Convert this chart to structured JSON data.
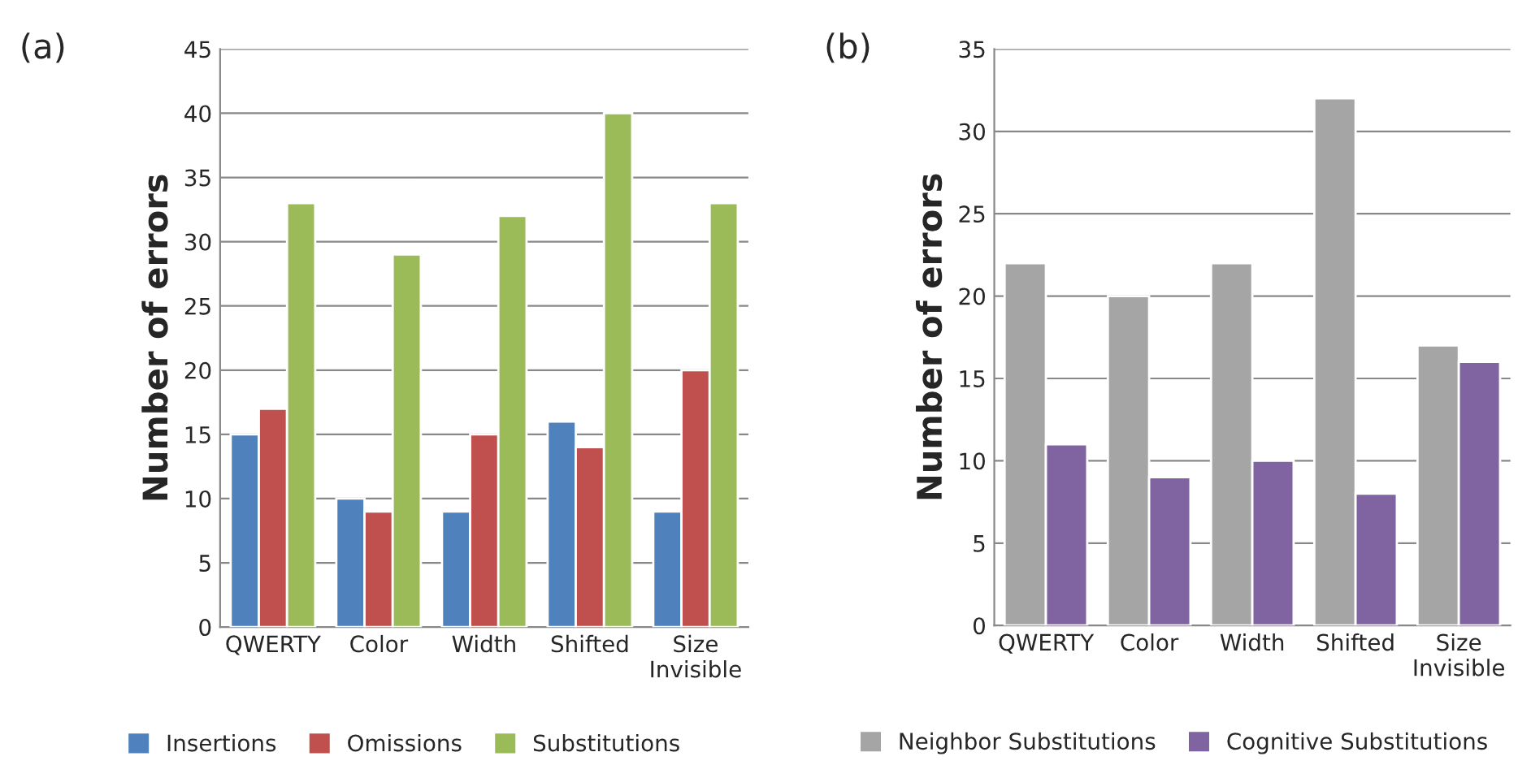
{
  "chart_data": [
    {
      "type": "bar",
      "title": "(a)",
      "ylabel": "Number of errors",
      "categories": [
        "QWERTY",
        "Color",
        "Width",
        "Shifted",
        "Size\nInvisible"
      ],
      "series": [
        {
          "name": "Insertions",
          "color": "#4f81bd",
          "values": [
            15,
            10,
            9,
            16,
            9
          ]
        },
        {
          "name": "Omissions",
          "color": "#c0504d",
          "values": [
            17,
            9,
            15,
            14,
            20
          ]
        },
        {
          "name": "Substitutions",
          "color": "#9bbb59",
          "values": [
            33,
            29,
            32,
            40,
            33
          ]
        }
      ],
      "ylim": [
        0,
        45
      ],
      "yticks": [
        0,
        5,
        10,
        15,
        20,
        25,
        30,
        35,
        40,
        45
      ],
      "grid": "y",
      "legend": "bottom"
    },
    {
      "type": "bar",
      "title": "(b)",
      "ylabel": "Number of errors",
      "categories": [
        "QWERTY",
        "Color",
        "Width",
        "Shifted",
        "Size\nInvisible"
      ],
      "series": [
        {
          "name": "Neighbor Substitutions",
          "color": "#a5a5a5",
          "values": [
            22,
            20,
            22,
            32,
            17
          ]
        },
        {
          "name": "Cognitive Substitutions",
          "color": "#8064a2",
          "values": [
            11,
            9,
            10,
            8,
            16
          ]
        }
      ],
      "ylim": [
        0,
        35
      ],
      "yticks": [
        0,
        5,
        10,
        15,
        20,
        25,
        30,
        35
      ],
      "grid": "y",
      "legend": "bottom"
    }
  ]
}
